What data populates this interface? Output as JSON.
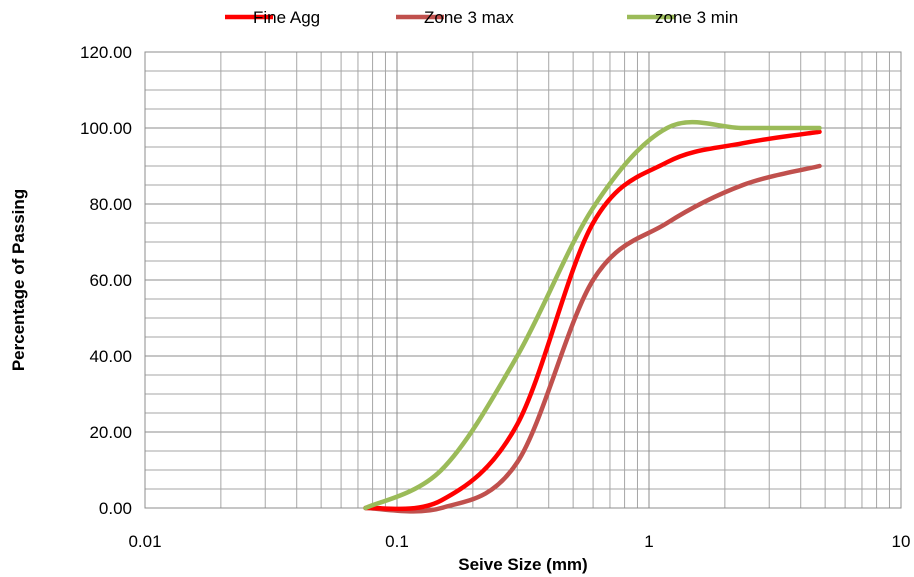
{
  "chart_data": {
    "type": "line",
    "title": "",
    "xlabel": "Seive Size (mm)",
    "ylabel": "Percentage of Passing",
    "x_scale": "log",
    "xlim": [
      0.01,
      10
    ],
    "ylim": [
      0,
      120
    ],
    "x_ticks": [
      0.01,
      0.1,
      1,
      10
    ],
    "x_tick_labels": [
      "0.01",
      "0.1",
      "1",
      "10"
    ],
    "y_ticks": [
      0,
      20,
      40,
      60,
      80,
      100,
      120
    ],
    "y_tick_labels": [
      "0.00",
      "20.00",
      "40.00",
      "60.00",
      "80.00",
      "100.00",
      "120.00"
    ],
    "grid": true,
    "legend_position": "top",
    "series": [
      {
        "name": "Fine Agg",
        "color": "#ff0000",
        "x": [
          0.075,
          0.15,
          0.3,
          0.6,
          1.18,
          2.36,
          4.75
        ],
        "y": [
          0,
          2,
          22,
          75,
          91,
          96,
          99
        ]
      },
      {
        "name": "Zone 3 max",
        "color": "#c0504d",
        "x": [
          0.075,
          0.15,
          0.3,
          0.6,
          1.18,
          2.36,
          4.75
        ],
        "y": [
          0,
          0,
          12,
          60,
          75,
          85,
          90
        ]
      },
      {
        "name": "zone 3 min",
        "color": "#9bbb59",
        "x": [
          0.075,
          0.15,
          0.3,
          0.6,
          1.18,
          2.36,
          4.75
        ],
        "y": [
          0,
          10,
          40,
          79,
          100,
          100,
          100
        ]
      }
    ]
  }
}
